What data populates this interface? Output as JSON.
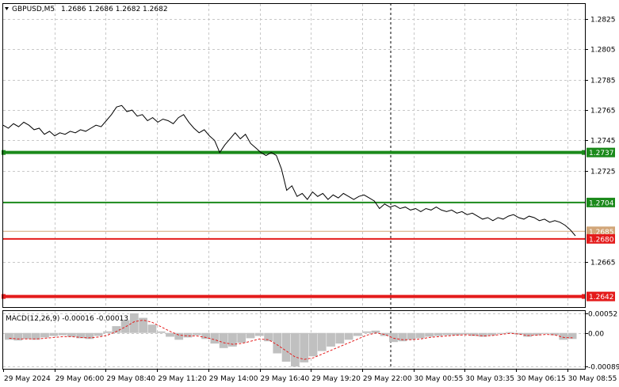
{
  "header": {
    "symbol": "GBPUSD,M5",
    "ohlc": "1.2686 1.2686 1.2682 1.2682"
  },
  "chart_data": [
    {
      "type": "line",
      "title": "",
      "x_ticks": [
        "29 May 2024",
        "29 May 06:00",
        "29 May 08:40",
        "29 May 11:20",
        "29 May 14:00",
        "29 May 16:40",
        "29 May 19:20",
        "29 May 22:00",
        "30 May 00:55",
        "30 May 03:35",
        "30 May 06:15",
        "30 May 08:55"
      ],
      "y_ticks": [
        "1.2825",
        "1.2805",
        "1.2785",
        "1.2765",
        "1.2745",
        "1.2725",
        "1.2665"
      ],
      "ylim": [
        1.2635,
        1.2835
      ],
      "grid": true,
      "series": [
        {
          "values": [
            1.2755,
            1.2753,
            1.2756,
            1.2754,
            1.2757,
            1.2755,
            1.2752,
            1.2753,
            1.2749,
            1.2751,
            1.2748,
            1.275,
            1.2749,
            1.2751,
            1.275,
            1.2752,
            1.2751,
            1.2753,
            1.2755,
            1.2754,
            1.2758,
            1.2762,
            1.2767,
            1.2768,
            1.2764,
            1.2765,
            1.2761,
            1.2762,
            1.2758,
            1.276,
            1.2757,
            1.2759,
            1.2758,
            1.2756,
            1.276,
            1.2762,
            1.2757,
            1.2753,
            1.275,
            1.2752,
            1.2748,
            1.2745,
            1.2737,
            1.2742,
            1.2746,
            1.275,
            1.2746,
            1.2749,
            1.2743,
            1.274,
            1.2737,
            1.2735,
            1.2737,
            1.2735,
            1.2726,
            1.2712,
            1.2715,
            1.2708,
            1.271,
            1.2706,
            1.2711,
            1.2708,
            1.271,
            1.2706,
            1.2709,
            1.2707,
            1.271,
            1.2708,
            1.2706,
            1.2708,
            1.2709,
            1.2707,
            1.2705,
            1.27,
            1.2703,
            1.2701,
            1.2702,
            1.27,
            1.2701,
            1.2699,
            1.27,
            1.2698,
            1.27,
            1.2699,
            1.2701,
            1.2699,
            1.2698,
            1.2699,
            1.2697,
            1.2698,
            1.2696,
            1.2697,
            1.2695,
            1.2693,
            1.2694,
            1.2692,
            1.2694,
            1.2693,
            1.2695,
            1.2696,
            1.2694,
            1.2693,
            1.2695,
            1.2694,
            1.2692,
            1.2693,
            1.2691,
            1.2692,
            1.2691,
            1.2689,
            1.2686,
            1.2682
          ],
          "color": "#000000"
        }
      ],
      "levels": [
        {
          "value": 1.2737,
          "label": "1.2737",
          "color": "#1b8a1b",
          "width": 4
        },
        {
          "value": 1.2704,
          "label": "1.2704",
          "color": "#1b8a1b",
          "width": 2
        },
        {
          "value": 1.2685,
          "label": "1.2685",
          "color": "#d2a679",
          "width": 1
        },
        {
          "value": 1.268,
          "label": "1.2680",
          "color": "#e41b1b",
          "width": 2
        },
        {
          "value": 1.2642,
          "label": "1.2642",
          "color": "#e41b1b",
          "width": 4
        }
      ]
    },
    {
      "type": "bar",
      "title": "MACD(12,26,9) -0.00016 -0.00013",
      "y_ticks": [
        "0.00052",
        "0.00",
        "-0.00089"
      ],
      "ylim": [
        -0.00095,
        0.00058
      ],
      "histogram_color": "#c0c0c0",
      "signal_color": "#e41b1b",
      "histogram": [
        -0.00018,
        -0.0002,
        -0.00016,
        -0.00018,
        -0.00012,
        -8e-05,
        -6e-05,
        -0.0001,
        -0.00014,
        -0.00016,
        -8e-05,
        4e-05,
        0.00018,
        0.00034,
        0.00052,
        0.0004,
        0.00022,
        4e-05,
        -0.0001,
        -0.00018,
        -0.00012,
        -6e-05,
        -0.00016,
        -0.00028,
        -0.0004,
        -0.00036,
        -0.00026,
        -0.00014,
        -8e-05,
        -0.00022,
        -0.00054,
        -0.00076,
        -0.00089,
        -0.00078,
        -0.00062,
        -0.00048,
        -0.00036,
        -0.00028,
        -0.00018,
        -8e-05,
        4e-05,
        6e-05,
        -8e-05,
        -0.00024,
        -0.00022,
        -0.00018,
        -0.00014,
        -0.0001,
        -8e-05,
        -6e-05,
        -6e-05,
        -4e-05,
        -8e-05,
        -0.0001,
        -6e-05,
        -2e-05,
        2e-05,
        -4e-05,
        -0.0001,
        -6e-05,
        -2e-05,
        -6e-05,
        -0.00018,
        -0.00016
      ],
      "signal": [
        -0.00014,
        -0.00016,
        -0.00016,
        -0.00016,
        -0.00014,
        -0.00012,
        -0.0001,
        -0.0001,
        -0.00012,
        -0.00013,
        -0.00011,
        -6e-05,
        4e-05,
        0.00016,
        0.0003,
        0.00034,
        0.00028,
        0.00016,
        4e-05,
        -6e-05,
        -8e-05,
        -8e-05,
        -0.00012,
        -0.00018,
        -0.00026,
        -0.0003,
        -0.00028,
        -0.00022,
        -0.00016,
        -0.00018,
        -0.00032,
        -0.00048,
        -0.00064,
        -0.0007,
        -0.00066,
        -0.00056,
        -0.00046,
        -0.00036,
        -0.00026,
        -0.00016,
        -6e-05,
        0.0,
        -4e-05,
        -0.00014,
        -0.00018,
        -0.00018,
        -0.00016,
        -0.00012,
        -0.0001,
        -8e-05,
        -6e-05,
        -5e-05,
        -6e-05,
        -8e-05,
        -7e-05,
        -4e-05,
        -1e-05,
        -3e-05,
        -7e-05,
        -6e-05,
        -4e-05,
        -5e-05,
        -0.00012,
        -0.00013
      ]
    }
  ]
}
